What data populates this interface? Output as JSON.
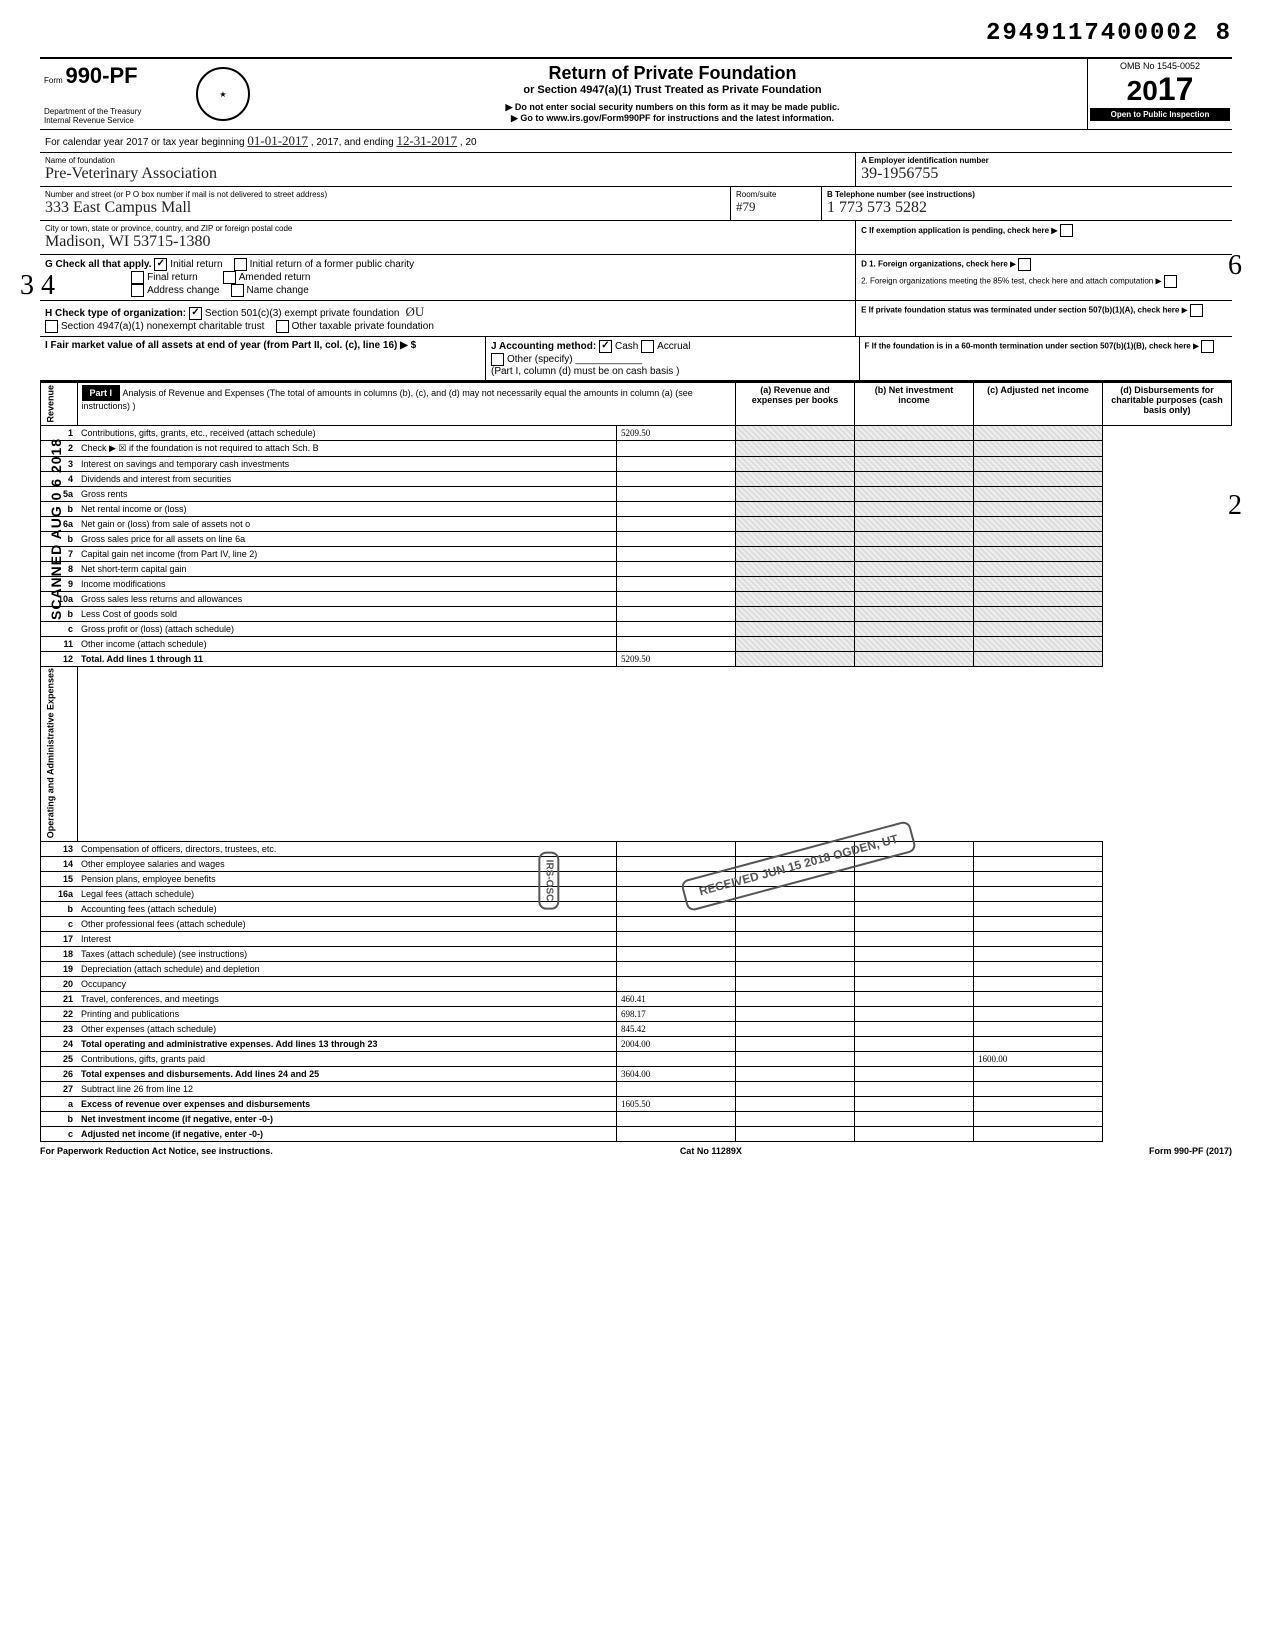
{
  "doc_id": "2949117400002 8",
  "form": {
    "prefix": "Form",
    "number": "990-PF",
    "dept1": "Department of the Treasury",
    "dept2": "Internal Revenue Service"
  },
  "title": {
    "main": "Return of Private Foundation",
    "sub": "or Section 4947(a)(1) Trust Treated as Private Foundation",
    "note1": "▶ Do not enter social security numbers on this form as it may be made public.",
    "note2": "▶ Go to www.irs.gov/Form990PF for instructions and the latest information."
  },
  "omb": {
    "label": "OMB No 1545-0052",
    "year_prefix": "20",
    "year_suffix": "17",
    "inspection": "Open to Public Inspection"
  },
  "period": {
    "line": "For calendar year 2017 or tax year beginning",
    "begin": "01-01-2017",
    "mid": ", 2017, and ending",
    "end": "12-31-2017",
    "suffix": ", 20"
  },
  "foundation": {
    "name_label": "Name of foundation",
    "name": "Pre-Veterinary Association",
    "addr_label": "Number and street (or P O box number if mail is not delivered to street address)",
    "addr": "333 East Campus Mall",
    "room_label": "Room/suite",
    "room": "#79",
    "city_label": "City or town, state or province, country, and ZIP or foreign postal code",
    "city": "Madison, WI  53715-1380"
  },
  "boxA": {
    "label": "A  Employer identification number",
    "value": "39-1956755"
  },
  "boxB": {
    "label": "B  Telephone number (see instructions)",
    "value": "1 773 573 5282"
  },
  "boxC": {
    "label": "C  If exemption application is pending, check here ▶"
  },
  "boxD": {
    "d1": "D  1. Foreign organizations, check here",
    "d2": "2. Foreign organizations meeting the 85% test, check here and attach computation"
  },
  "boxE": {
    "label": "E  If private foundation status was terminated under section 507(b)(1)(A), check here"
  },
  "boxF": {
    "label": "F  If the foundation is in a 60-month termination under section 507(b)(1)(B), check here"
  },
  "sectionG": {
    "label": "G  Check all that apply.",
    "opts": [
      "Initial return",
      "Initial return of a former public charity",
      "Final return",
      "Amended return",
      "Address change",
      "Name change"
    ],
    "checked": [
      true,
      false,
      false,
      false,
      false,
      false
    ]
  },
  "sectionH": {
    "label": "H  Check type of organization:",
    "opts": [
      "Section 501(c)(3) exempt private foundation",
      "Section 4947(a)(1) nonexempt charitable trust",
      "Other taxable private foundation"
    ],
    "checked": [
      true,
      false,
      false
    ]
  },
  "sectionI": {
    "label": "I   Fair market value of all assets at end of year (from Part II, col. (c), line 16) ▶ $",
    "value": ""
  },
  "sectionJ": {
    "label": "J  Accounting method:",
    "opts": [
      "Cash",
      "Accrual",
      "Other (specify)"
    ],
    "checked": [
      true,
      false,
      false
    ],
    "note": "(Part I, column (d) must be on cash basis )"
  },
  "part1": {
    "label": "Part I",
    "heading": "Analysis of Revenue and Expenses (The total of amounts in columns (b), (c), and (d) may not necessarily equal the amounts in column (a) (see instructions) )",
    "cols": {
      "a": "(a) Revenue and expenses per books",
      "b": "(b) Net investment income",
      "c": "(c) Adjusted net income",
      "d": "(d) Disbursements for charitable purposes (cash basis only)"
    }
  },
  "revenue_label": "Revenue",
  "expenses_label": "Operating and Administrative Expenses",
  "lines": [
    {
      "n": "1",
      "d": "Contributions, gifts, grants, etc., received (attach schedule)",
      "a": "5209.50"
    },
    {
      "n": "2",
      "d": "Check ▶ ☒ if the foundation is not required to attach Sch. B"
    },
    {
      "n": "3",
      "d": "Interest on savings and temporary cash investments"
    },
    {
      "n": "4",
      "d": "Dividends and interest from securities"
    },
    {
      "n": "5a",
      "d": "Gross rents"
    },
    {
      "n": "b",
      "d": "Net rental income or (loss)"
    },
    {
      "n": "6a",
      "d": "Net gain or (loss) from sale of assets not o"
    },
    {
      "n": "b",
      "d": "Gross sales price for all assets on line 6a"
    },
    {
      "n": "7",
      "d": "Capital gain net income (from Part IV, line 2)"
    },
    {
      "n": "8",
      "d": "Net short-term capital gain"
    },
    {
      "n": "9",
      "d": "Income modifications"
    },
    {
      "n": "10a",
      "d": "Gross sales less returns and allowances"
    },
    {
      "n": "b",
      "d": "Less Cost of goods sold"
    },
    {
      "n": "c",
      "d": "Gross profit or (loss) (attach schedule)"
    },
    {
      "n": "11",
      "d": "Other income (attach schedule)"
    },
    {
      "n": "12",
      "d": "Total. Add lines 1 through 11",
      "a": "5209.50",
      "bold": true
    }
  ],
  "exp_lines": [
    {
      "n": "13",
      "d": "Compensation of officers, directors, trustees, etc."
    },
    {
      "n": "14",
      "d": "Other employee salaries and wages"
    },
    {
      "n": "15",
      "d": "Pension plans, employee benefits"
    },
    {
      "n": "16a",
      "d": "Legal fees (attach schedule)"
    },
    {
      "n": "b",
      "d": "Accounting fees (attach schedule)"
    },
    {
      "n": "c",
      "d": "Other professional fees (attach schedule)"
    },
    {
      "n": "17",
      "d": "Interest"
    },
    {
      "n": "18",
      "d": "Taxes (attach schedule) (see instructions)"
    },
    {
      "n": "19",
      "d": "Depreciation (attach schedule) and depletion"
    },
    {
      "n": "20",
      "d": "Occupancy"
    },
    {
      "n": "21",
      "d": "Travel, conferences, and meetings",
      "a": "460.41"
    },
    {
      "n": "22",
      "d": "Printing and publications",
      "a": "698.17"
    },
    {
      "n": "23",
      "d": "Other expenses (attach schedule)",
      "a": "845.42"
    },
    {
      "n": "24",
      "d": "Total operating and administrative expenses. Add lines 13 through 23",
      "a": "2004.00",
      "bold": true
    },
    {
      "n": "25",
      "d": "Contributions, gifts, grants paid",
      "dd": "1600.00"
    },
    {
      "n": "26",
      "d": "Total expenses and disbursements. Add lines 24 and 25",
      "a": "3604.00",
      "bold": true
    },
    {
      "n": "27",
      "d": "Subtract line 26 from line 12"
    },
    {
      "n": "a",
      "d": "Excess of revenue over expenses and disbursements",
      "a": "1605.50",
      "bold": true
    },
    {
      "n": "b",
      "d": "Net investment income (if negative, enter -0-)",
      "bold": true
    },
    {
      "n": "c",
      "d": "Adjusted net income (if negative, enter -0-)",
      "bold": true
    }
  ],
  "footer": {
    "left": "For Paperwork Reduction Act Notice, see instructions.",
    "mid": "Cat No  11289X",
    "right": "Form 990-PF (2017)"
  },
  "stamps": {
    "scanned": "SCANNED AUG 0 6 2018",
    "received": "RECEIVED\nJUN 15 2018\nOGDEN, UT",
    "irs_osc": "IRS-OSC"
  },
  "margin_notes": {
    "left_34": "3\n4",
    "right_6": "6",
    "right_2": "2"
  }
}
